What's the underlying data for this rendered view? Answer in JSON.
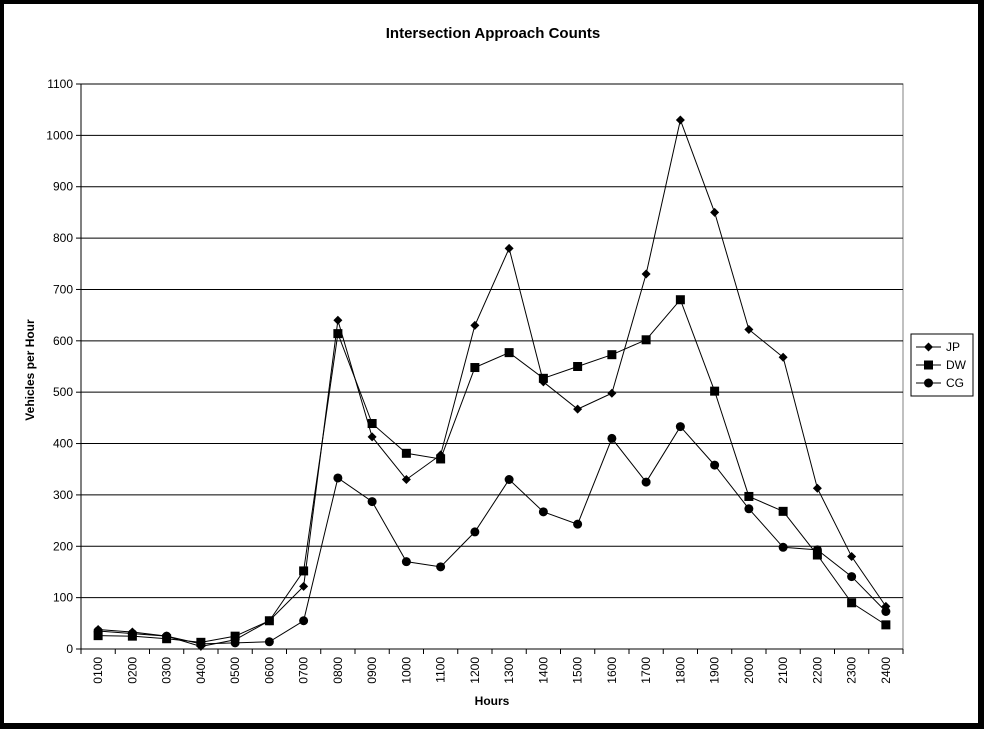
{
  "chart_data": {
    "type": "line",
    "title": "Intersection Approach Counts",
    "xlabel": "Hours",
    "ylabel": "Vehicles per Hour",
    "ylim": [
      0,
      1100
    ],
    "yticks": [
      0,
      100,
      200,
      300,
      400,
      500,
      600,
      700,
      800,
      900,
      1000,
      1100
    ],
    "grid": "horizontal",
    "legend_position": "right",
    "categories": [
      "0100",
      "0200",
      "0300",
      "0400",
      "0500",
      "0600",
      "0700",
      "0800",
      "0900",
      "1000",
      "1100",
      "1200",
      "1300",
      "1400",
      "1500",
      "1600",
      "1700",
      "1800",
      "1900",
      "2000",
      "2100",
      "2200",
      "2300",
      "2400"
    ],
    "series": [
      {
        "name": "JP",
        "marker": "diamond",
        "color": "#000000",
        "values": [
          38,
          33,
          25,
          5,
          18,
          55,
          122,
          640,
          413,
          330,
          378,
          630,
          780,
          520,
          467,
          498,
          730,
          1030,
          850,
          622,
          568,
          313,
          180,
          83
        ]
      },
      {
        "name": "DW",
        "marker": "square",
        "color": "#000000",
        "values": [
          26,
          25,
          20,
          13,
          25,
          55,
          152,
          614,
          439,
          381,
          370,
          548,
          577,
          527,
          550,
          573,
          602,
          680,
          502,
          297,
          268,
          183,
          90,
          47
        ]
      },
      {
        "name": "CG",
        "marker": "circle",
        "color": "#000000",
        "values": [
          35,
          30,
          25,
          10,
          12,
          14,
          55,
          333,
          287,
          170,
          160,
          228,
          330,
          267,
          243,
          410,
          325,
          433,
          358,
          273,
          198,
          193,
          141,
          73
        ]
      }
    ]
  }
}
